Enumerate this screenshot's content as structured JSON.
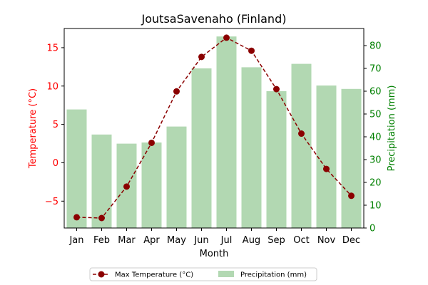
{
  "chart_data": {
    "type": "bar+line",
    "title": "JoutsaSavenaho (Finland)",
    "xlabel": "Month",
    "categories": [
      "Jan",
      "Feb",
      "Mar",
      "Apr",
      "May",
      "Jun",
      "Jul",
      "Aug",
      "Sep",
      "Oct",
      "Nov",
      "Dec"
    ],
    "series": [
      {
        "name": "Max Temperature (°C)",
        "kind": "line",
        "axis": "left",
        "color": "#8b0000",
        "values": [
          -7.1,
          -7.2,
          -3.1,
          2.6,
          9.3,
          13.8,
          16.3,
          14.6,
          9.6,
          3.8,
          -0.8,
          -4.3
        ]
      },
      {
        "name": "Precipitation (mm)",
        "kind": "bar",
        "axis": "right",
        "color": "#b2d8b2",
        "values": [
          52,
          41,
          37,
          37.5,
          44.5,
          70,
          84,
          70.5,
          60,
          72,
          62.5,
          61
        ]
      }
    ],
    "y_left": {
      "label": "Temperature (°C)",
      "color": "#ff0000",
      "ylim": [
        -8.5,
        17.5
      ],
      "ticks": [
        -5,
        0,
        5,
        10,
        15
      ]
    },
    "y_right": {
      "label": "Precipitation (mm)",
      "color": "#008000",
      "ylim": [
        0,
        87.5
      ],
      "ticks": [
        0,
        10,
        20,
        30,
        40,
        50,
        60,
        70,
        80
      ]
    },
    "grid": false,
    "legend_placement": "bottom-center"
  }
}
